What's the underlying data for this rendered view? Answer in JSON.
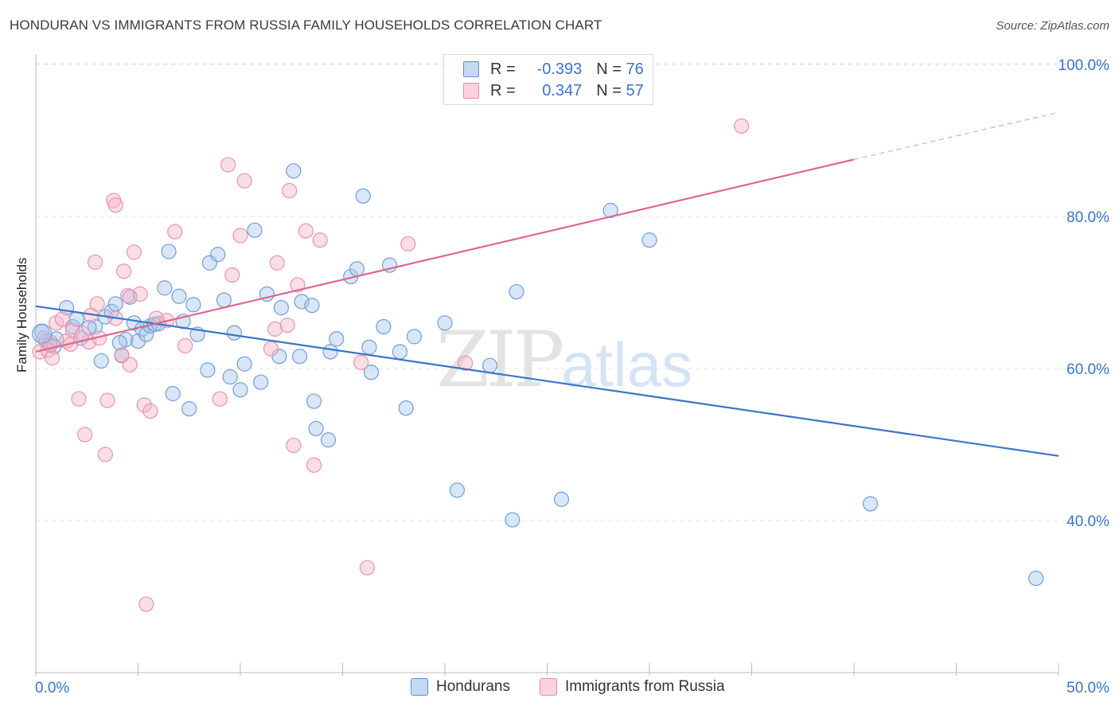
{
  "title": "HONDURAN VS IMMIGRANTS FROM RUSSIA FAMILY HOUSEHOLDS CORRELATION CHART",
  "source": "Source: ZipAtlas.com",
  "watermark": {
    "zip": "ZIP",
    "atlas": "atlas"
  },
  "legend": {
    "rows": [
      {
        "r_label": "R =",
        "r_value": "-0.393",
        "n_label": "N =",
        "n_value": "76",
        "color": "#a9c8ee"
      },
      {
        "r_label": "R =",
        "r_value": "0.347",
        "n_label": "N =",
        "n_value": "57",
        "color": "#f5b5c8"
      }
    ]
  },
  "bottom_legend": [
    "Hondurans",
    "Immigrants from Russia"
  ],
  "chart_data": {
    "type": "scatter",
    "title": "HONDURAN VS IMMIGRANTS FROM RUSSIA FAMILY HOUSEHOLDS CORRELATION CHART",
    "xlabel": "",
    "ylabel": "Family Households",
    "xlim": [
      0,
      50
    ],
    "ylim": [
      22,
      102
    ],
    "x_tick_labels": [
      "0.0%",
      "50.0%"
    ],
    "y_ticks": [
      40,
      60,
      80,
      100
    ],
    "y_tick_labels": [
      "40.0%",
      "60.0%",
      "80.0%",
      "100.0%"
    ],
    "grid": true,
    "legend_position": "top-center",
    "series": [
      {
        "name": "Hondurans",
        "color": "#3a75c4",
        "fill": "#a9c8ee",
        "trend": {
          "x": [
            0,
            50
          ],
          "y": [
            68.2,
            48.5
          ],
          "dashed_from": null
        },
        "points": [
          [
            0.3,
            64.8
          ],
          [
            0.5,
            63.6
          ],
          [
            0.7,
            63.5
          ],
          [
            1.5,
            68.0
          ],
          [
            1.8,
            65.5
          ],
          [
            2.0,
            66.5
          ],
          [
            2.2,
            64.0
          ],
          [
            2.9,
            65.5
          ],
          [
            3.2,
            61.0
          ],
          [
            3.4,
            66.8
          ],
          [
            3.7,
            67.5
          ],
          [
            3.9,
            68.5
          ],
          [
            4.2,
            61.7
          ],
          [
            4.4,
            63.8
          ],
          [
            4.6,
            69.4
          ],
          [
            4.8,
            66.0
          ],
          [
            5.0,
            63.6
          ],
          [
            5.2,
            65.2
          ],
          [
            5.4,
            64.5
          ],
          [
            5.6,
            65.6
          ],
          [
            5.8,
            65.8
          ],
          [
            6.3,
            70.6
          ],
          [
            6.5,
            75.4
          ],
          [
            6.7,
            56.7
          ],
          [
            7.0,
            69.5
          ],
          [
            7.2,
            66.2
          ],
          [
            7.5,
            54.7
          ],
          [
            7.7,
            68.4
          ],
          [
            7.9,
            64.5
          ],
          [
            8.4,
            59.8
          ],
          [
            8.5,
            73.9
          ],
          [
            8.9,
            75.0
          ],
          [
            9.2,
            69.0
          ],
          [
            9.5,
            58.9
          ],
          [
            9.7,
            64.7
          ],
          [
            10.0,
            57.2
          ],
          [
            10.2,
            60.6
          ],
          [
            10.7,
            78.2
          ],
          [
            11.0,
            58.2
          ],
          [
            11.3,
            69.8
          ],
          [
            11.9,
            61.6
          ],
          [
            12.0,
            68.0
          ],
          [
            12.6,
            86.0
          ],
          [
            12.9,
            61.6
          ],
          [
            13.0,
            68.8
          ],
          [
            13.5,
            68.3
          ],
          [
            13.6,
            55.7
          ],
          [
            13.7,
            52.1
          ],
          [
            14.3,
            50.6
          ],
          [
            14.4,
            62.2
          ],
          [
            14.7,
            63.9
          ],
          [
            15.4,
            72.1
          ],
          [
            15.7,
            73.1
          ],
          [
            16.0,
            82.7
          ],
          [
            16.3,
            62.8
          ],
          [
            16.4,
            59.5
          ],
          [
            17.0,
            65.5
          ],
          [
            17.3,
            73.6
          ],
          [
            17.8,
            62.2
          ],
          [
            18.1,
            54.8
          ],
          [
            18.5,
            64.2
          ],
          [
            20.0,
            66.0
          ],
          [
            20.6,
            44.0
          ],
          [
            22.2,
            60.4
          ],
          [
            23.5,
            70.1
          ],
          [
            23.3,
            40.1
          ],
          [
            25.7,
            42.8
          ],
          [
            28.1,
            80.8
          ],
          [
            30.0,
            76.9
          ],
          [
            40.8,
            42.2
          ],
          [
            48.9,
            32.4
          ],
          [
            1.0,
            63.9
          ],
          [
            2.6,
            65.4
          ],
          [
            4.1,
            63.4
          ],
          [
            6.0,
            65.9
          ],
          [
            0.9,
            62.9
          ]
        ]
      },
      {
        "name": "Immigrants from Russia",
        "color": "#e0668f",
        "fill": "#f5b5c8",
        "trend": {
          "x": [
            0,
            40,
            50
          ],
          "y": [
            62.2,
            87.5,
            93.7
          ],
          "dashed_from": 40
        },
        "points": [
          [
            0.2,
            62.2
          ],
          [
            0.4,
            64.0
          ],
          [
            0.6,
            62.4
          ],
          [
            0.8,
            61.4
          ],
          [
            1.0,
            66.0
          ],
          [
            1.3,
            66.5
          ],
          [
            1.5,
            63.6
          ],
          [
            1.8,
            65.0
          ],
          [
            2.1,
            56.0
          ],
          [
            2.4,
            51.3
          ],
          [
            2.6,
            63.5
          ],
          [
            2.7,
            67.0
          ],
          [
            2.9,
            74.0
          ],
          [
            3.0,
            68.5
          ],
          [
            3.1,
            64.0
          ],
          [
            3.4,
            48.7
          ],
          [
            3.5,
            55.8
          ],
          [
            3.8,
            82.1
          ],
          [
            3.9,
            81.5
          ],
          [
            4.2,
            61.8
          ],
          [
            4.3,
            72.8
          ],
          [
            4.5,
            69.6
          ],
          [
            4.6,
            60.5
          ],
          [
            4.8,
            75.3
          ],
          [
            5.1,
            69.8
          ],
          [
            5.3,
            55.2
          ],
          [
            5.6,
            54.4
          ],
          [
            5.4,
            29.0
          ],
          [
            5.9,
            66.6
          ],
          [
            6.4,
            66.3
          ],
          [
            6.8,
            78.0
          ],
          [
            7.3,
            63.0
          ],
          [
            9.0,
            56.0
          ],
          [
            9.4,
            86.8
          ],
          [
            9.6,
            72.3
          ],
          [
            10.0,
            77.5
          ],
          [
            10.2,
            84.7
          ],
          [
            11.5,
            62.6
          ],
          [
            11.7,
            65.2
          ],
          [
            11.8,
            73.9
          ],
          [
            12.3,
            65.7
          ],
          [
            12.4,
            83.4
          ],
          [
            12.6,
            49.9
          ],
          [
            12.8,
            71.0
          ],
          [
            13.2,
            78.1
          ],
          [
            13.6,
            47.3
          ],
          [
            13.9,
            76.9
          ],
          [
            15.9,
            60.8
          ],
          [
            16.2,
            33.8
          ],
          [
            18.2,
            76.4
          ],
          [
            21.0,
            60.7
          ],
          [
            27.0,
            100.0
          ],
          [
            34.5,
            91.9
          ],
          [
            0.7,
            63.1
          ],
          [
            2.3,
            64.6
          ],
          [
            1.7,
            63.2
          ],
          [
            3.9,
            66.6
          ]
        ]
      }
    ]
  }
}
